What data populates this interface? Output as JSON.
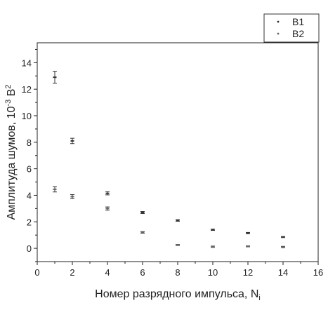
{
  "chart_data": {
    "type": "scatter",
    "xlabel": "Номер разрядного импульса, N",
    "xlabel_sub": "i",
    "ylabel": "Амплитуда шумов, 10",
    "ylabel_sup": "-3",
    "ylabel_unit": " В",
    "ylabel_unit_sup": "2",
    "xlim": [
      0,
      16
    ],
    "ylim": [
      -1,
      15.5
    ],
    "xticks": [
      "0",
      "2",
      "4",
      "6",
      "8",
      "10",
      "12",
      "14",
      "16"
    ],
    "yticks": [
      "0",
      "2",
      "4",
      "6",
      "8",
      "10",
      "12",
      "14"
    ],
    "grid": false,
    "legend_position": "top-right",
    "series": [
      {
        "name": "B1",
        "color": "#333333",
        "points": [
          {
            "x": 1,
            "y": 12.9,
            "err": 0.45
          },
          {
            "x": 2,
            "y": 8.1,
            "err": 0.2
          },
          {
            "x": 4,
            "y": 4.15,
            "err": 0.12
          },
          {
            "x": 6,
            "y": 2.7,
            "err": 0.08
          },
          {
            "x": 8,
            "y": 2.1,
            "err": 0.06
          },
          {
            "x": 10,
            "y": 1.4,
            "err": 0.05
          },
          {
            "x": 12,
            "y": 1.15,
            "err": 0.05
          },
          {
            "x": 14,
            "y": 0.85,
            "err": 0.04
          }
        ]
      },
      {
        "name": "B2",
        "color": "#666666",
        "points": [
          {
            "x": 1,
            "y": 4.45,
            "err": 0.2
          },
          {
            "x": 2,
            "y": 3.9,
            "err": 0.15
          },
          {
            "x": 4,
            "y": 3.0,
            "err": 0.12
          },
          {
            "x": 6,
            "y": 1.2,
            "err": 0.06
          },
          {
            "x": 8,
            "y": 0.25,
            "err": 0.04
          },
          {
            "x": 10,
            "y": 0.12,
            "err": 0.05
          },
          {
            "x": 12,
            "y": 0.15,
            "err": 0.04
          },
          {
            "x": 14,
            "y": 0.1,
            "err": 0.05
          }
        ]
      }
    ]
  }
}
